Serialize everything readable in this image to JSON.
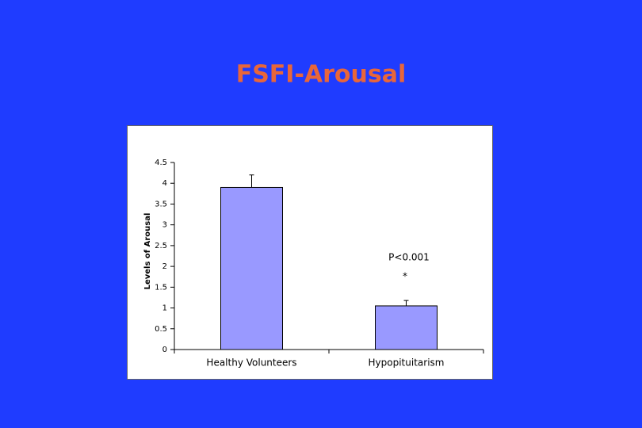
{
  "chart_data": {
    "type": "bar",
    "title": "FSFI-Arousal",
    "y_label": "Levels of Arousal",
    "categories": [
      "Healthy Volunteers",
      "Hypopituitarism"
    ],
    "values": [
      3.9,
      1.05
    ],
    "errors": [
      0.3,
      0.13
    ],
    "color": "#9999ff",
    "ylim": [
      0,
      4.5
    ],
    "yticks": [
      0,
      0.5,
      1,
      1.5,
      2,
      2.5,
      3,
      3.5,
      4,
      4.5
    ],
    "annotations": [
      "P<0.001",
      "*"
    ]
  }
}
